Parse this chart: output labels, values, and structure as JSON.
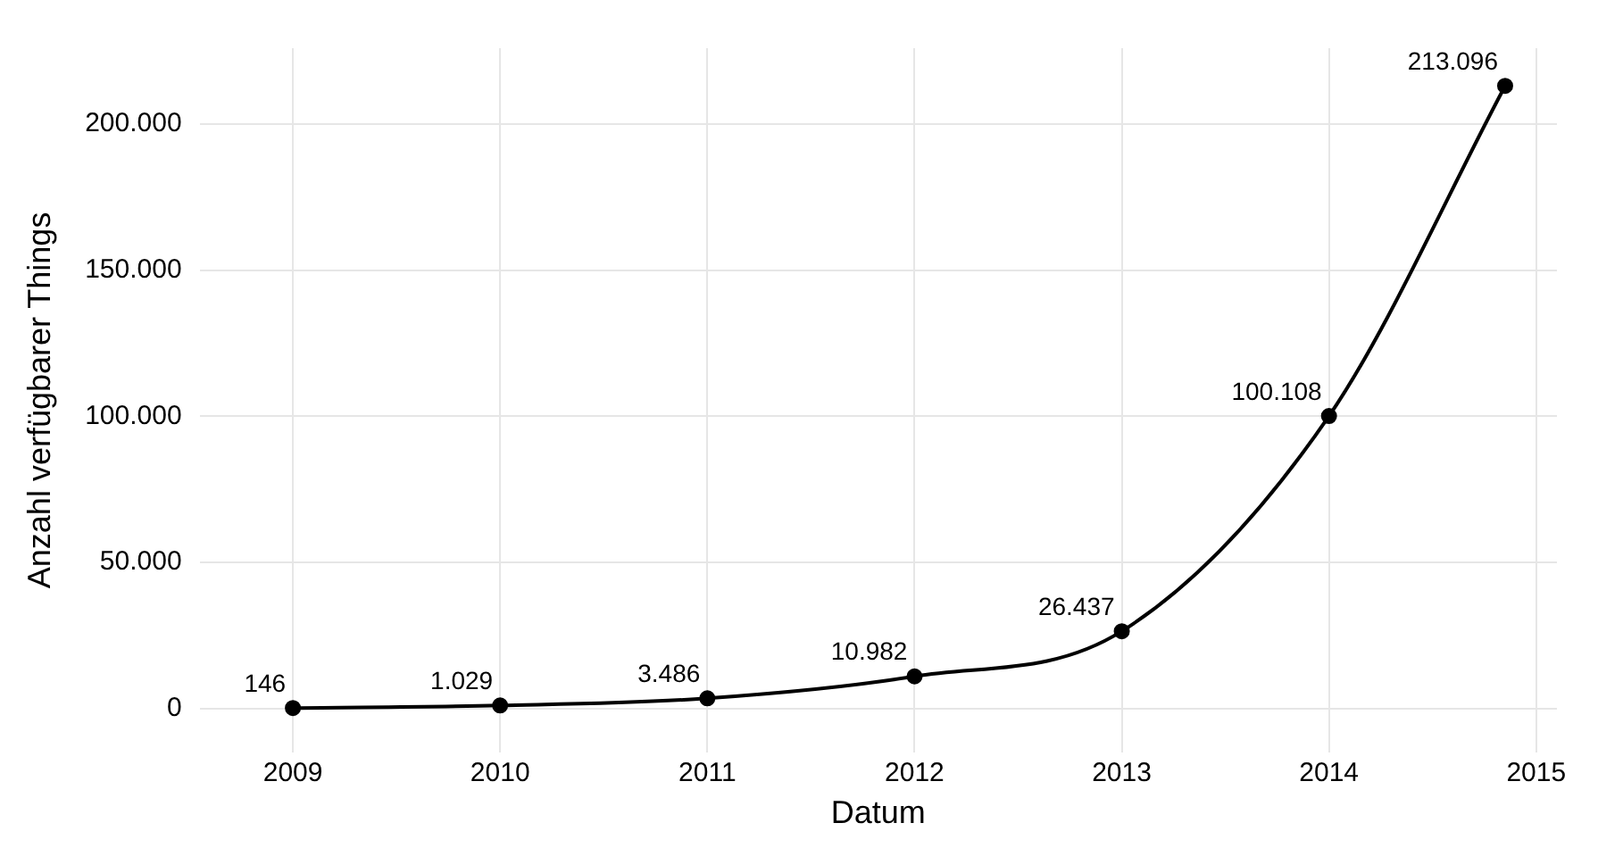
{
  "chart_data": {
    "type": "line",
    "xlabel": "Datum",
    "ylabel": "Anzahl verfügbarer Things",
    "x": [
      2009,
      2010,
      2011,
      2012,
      2013,
      2014,
      2014.85
    ],
    "series": [
      {
        "color": "#000000",
        "values": [
          146,
          1029,
          3486,
          10982,
          26437,
          100108,
          213096
        ],
        "value_labels": [
          "146",
          "1.029",
          "3.486",
          "10.982",
          "26.437",
          "100.108",
          "213.096"
        ]
      }
    ],
    "xlim": [
      2008.55,
      2015.1
    ],
    "xticks": [
      2009,
      2010,
      2011,
      2012,
      2013,
      2014,
      2015
    ],
    "ylim": [
      -15000,
      226000
    ],
    "yticks": [
      {
        "value": 0,
        "label": "0"
      },
      {
        "value": 50000,
        "label": "50.000"
      },
      {
        "value": 100000,
        "label": "100.000"
      },
      {
        "value": 150000,
        "label": "150.000"
      },
      {
        "value": 200000,
        "label": "200.000"
      }
    ],
    "grid": true,
    "legend": false,
    "marker": "circle",
    "line_style": "solid"
  }
}
